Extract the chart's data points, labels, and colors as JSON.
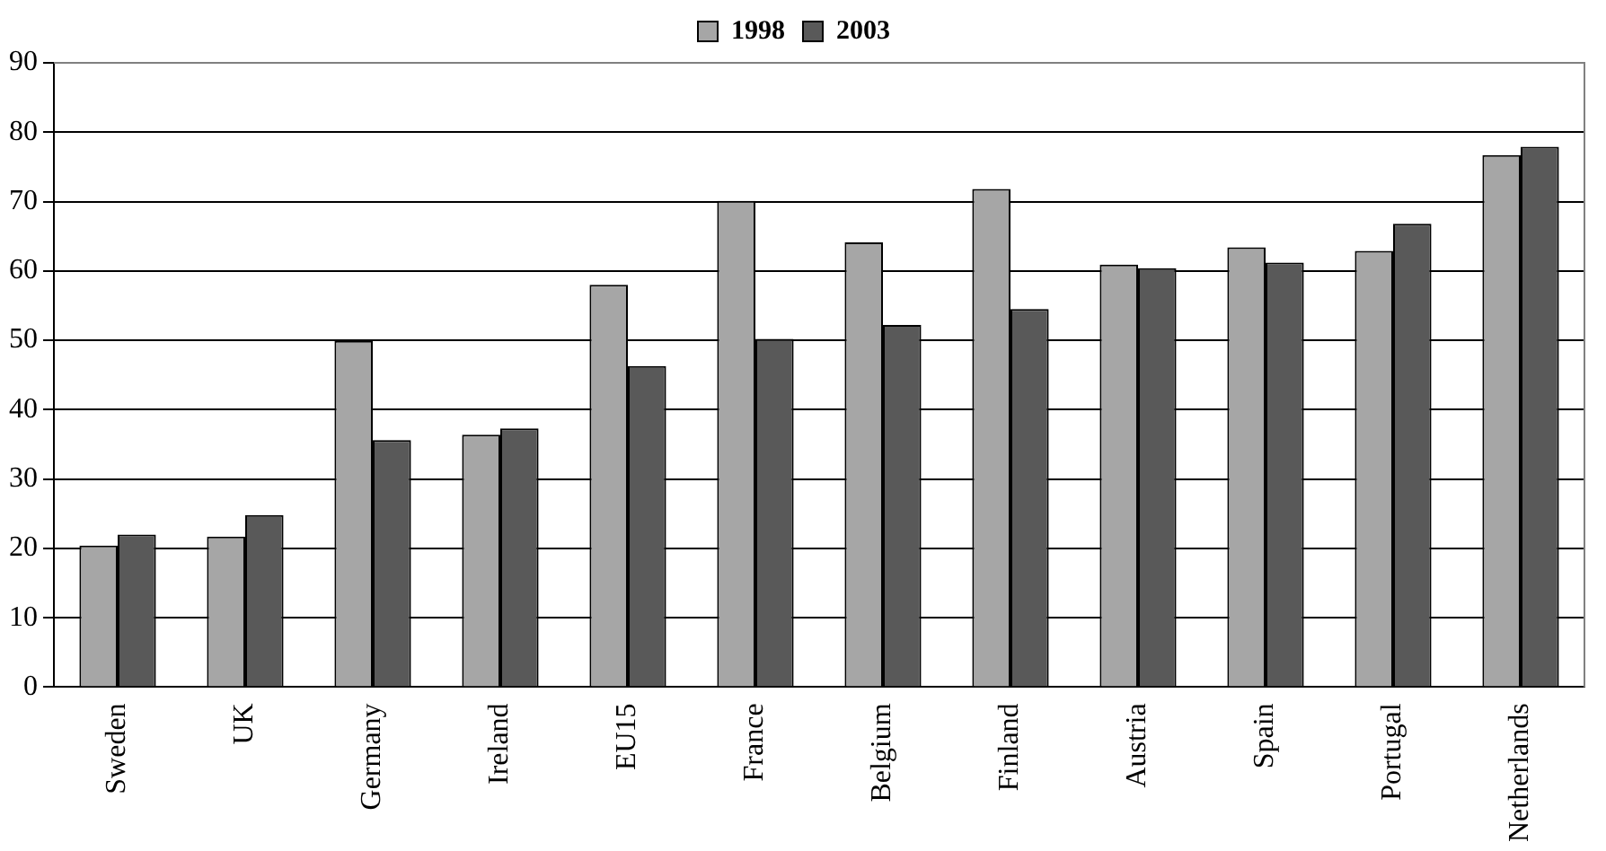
{
  "chart_data": {
    "type": "bar",
    "categories": [
      "Sweden",
      "UK",
      "Germany",
      "Ireland",
      "EU15",
      "France",
      "Belgium",
      "Finland",
      "Austria",
      "Spain",
      "Portugal",
      "Netherlands"
    ],
    "series": [
      {
        "name": "1998",
        "color": "#a6a6a6",
        "values": [
          20.4,
          21.7,
          49.9,
          36.4,
          58.0,
          70.1,
          64.1,
          71.8,
          60.9,
          63.4,
          62.9,
          76.7
        ]
      },
      {
        "name": "2003",
        "color": "#595959",
        "values": [
          22.0,
          24.8,
          35.6,
          37.3,
          46.3,
          50.2,
          52.2,
          54.5,
          60.4,
          61.2,
          66.8,
          77.9
        ]
      }
    ],
    "ylim": [
      0,
      90
    ],
    "yticks": [
      0,
      10,
      20,
      30,
      40,
      50,
      60,
      70,
      80,
      90
    ],
    "grid": "y",
    "legend": "top"
  }
}
